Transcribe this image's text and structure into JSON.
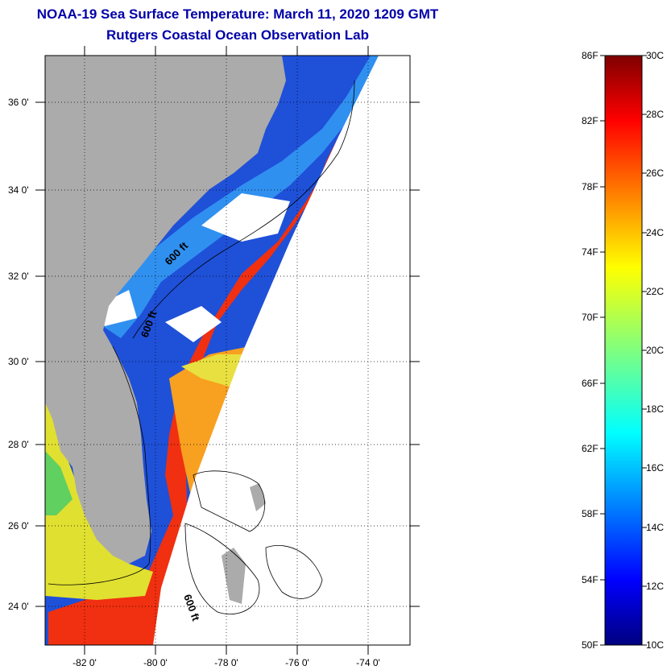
{
  "title": {
    "line1": "NOAA-19 Sea Surface Temperature:  March 11, 2020 1209 GMT",
    "line2": "Rutgers Coastal Ocean Observation Lab"
  },
  "map": {
    "lat_ticks": [
      "24 0'",
      "26 0'",
      "28 0'",
      "30 0'",
      "32 0'",
      "34 0'",
      "36 0'"
    ],
    "lon_ticks": [
      "-82 0'",
      "-80 0'",
      "-78 0'",
      "-76 0'",
      "-74 0'"
    ],
    "contour_labels": [
      "600 ft",
      "600 ft",
      "600 ft"
    ],
    "colors": {
      "land": "#ababab",
      "warm": "#f03010",
      "cold": "#0820c0"
    }
  },
  "colorbar": {
    "fahrenheit": [
      "86F",
      "82F",
      "78F",
      "74F",
      "70F",
      "66F",
      "62F",
      "58F",
      "54F",
      "50F"
    ],
    "celsius": [
      "30C",
      "28C",
      "26C",
      "24C",
      "22C",
      "20C",
      "18C",
      "16C",
      "14C",
      "12C",
      "10C"
    ]
  }
}
